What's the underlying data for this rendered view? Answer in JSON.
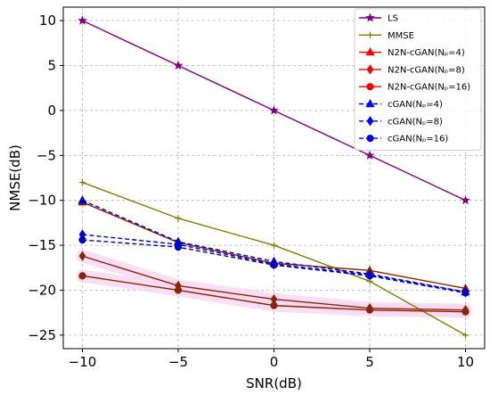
{
  "chart_data": {
    "type": "line",
    "xlabel": "SNR(dB)",
    "ylabel": "NMSE(dB)",
    "xlim": [
      -11,
      11
    ],
    "ylim": [
      -26.5,
      11.5
    ],
    "xticks": [
      -10,
      -5,
      0,
      5,
      10
    ],
    "yticks": [
      10,
      5,
      0,
      -5,
      -10,
      -15,
      -20,
      -25
    ],
    "xtick_labels": [
      "−10",
      "−5",
      "0",
      "5",
      "10"
    ],
    "ytick_labels": [
      "10",
      "5",
      "0",
      "−5",
      "−10",
      "−15",
      "−20",
      "−25"
    ],
    "grid": true,
    "legend_position": "top-right",
    "x": [
      -10,
      -5,
      0,
      5,
      10
    ],
    "series": [
      {
        "name": "LS",
        "color": "#800080",
        "marker": "star",
        "dashed": false,
        "values": [
          10,
          5,
          0,
          -5,
          -10
        ]
      },
      {
        "name": "MMSE",
        "color": "#808000",
        "marker": "plus",
        "dashed": false,
        "values": [
          -8,
          -12,
          -15,
          -19,
          -25
        ]
      },
      {
        "name": "N2N-cGAN(Nₚ=4)",
        "color": "#8b2500",
        "marker": "triangle",
        "dashed": false,
        "values": [
          -10.2,
          -14.7,
          -17,
          -17.8,
          -19.8
        ]
      },
      {
        "name": "N2N-cGAN(Nₚ=8)",
        "color": "#8b2500",
        "marker": "diamond",
        "dashed": false,
        "values": [
          -16.2,
          -19.5,
          -21,
          -22,
          -22.2
        ]
      },
      {
        "name": "N2N-cGAN(Nₚ=16)",
        "color": "#8b2500",
        "marker": "circle",
        "dashed": false,
        "values": [
          -18.4,
          -20,
          -21.7,
          -22.2,
          -22.4
        ]
      },
      {
        "name": "cGAN(Nₚ=4)",
        "color": "#0000cd",
        "marker": "triangle",
        "dashed": true,
        "values": [
          -10,
          -14.6,
          -16.8,
          -18.2,
          -20.2
        ]
      },
      {
        "name": "cGAN(Nₚ=8)",
        "color": "#0000cd",
        "marker": "diamond",
        "dashed": true,
        "values": [
          -13.8,
          -14.9,
          -17.1,
          -18.3,
          -20.2
        ]
      },
      {
        "name": "cGAN(Nₚ=16)",
        "color": "#0000cd",
        "marker": "circle",
        "dashed": true,
        "values": [
          -14.4,
          -15.2,
          -17.2,
          -18.4,
          -20.3
        ]
      }
    ],
    "legend": [
      {
        "name": "LS",
        "line_color": "#800080",
        "marker_color": "#800080",
        "marker": "star",
        "dashed": false
      },
      {
        "name": "MMSE",
        "line_color": "#808000",
        "marker_color": "#808000",
        "marker": "plus",
        "dashed": false
      },
      {
        "name": "N2N-cGAN(Nₚ=4)",
        "line_color": "#ff0000",
        "marker_color": "#ff0000",
        "marker": "triangle",
        "dashed": false
      },
      {
        "name": "N2N-cGAN(Nₚ=8)",
        "line_color": "#ff0000",
        "marker_color": "#ff0000",
        "marker": "diamond",
        "dashed": false
      },
      {
        "name": "N2N-cGAN(Nₚ=16)",
        "line_color": "#ff0000",
        "marker_color": "#ff0000",
        "marker": "circle",
        "dashed": false
      },
      {
        "name": "cGAN(Nₚ=4)",
        "line_color": "#0000ff",
        "marker_color": "#0000ff",
        "marker": "triangle",
        "dashed": true
      },
      {
        "name": "cGAN(Nₚ=8)",
        "line_color": "#0000ff",
        "marker_color": "#0000ff",
        "marker": "diamond",
        "dashed": true
      },
      {
        "name": "cGAN(Nₚ=16)",
        "line_color": "#0000ff",
        "marker_color": "#0000ff",
        "marker": "circle",
        "dashed": true
      }
    ]
  }
}
